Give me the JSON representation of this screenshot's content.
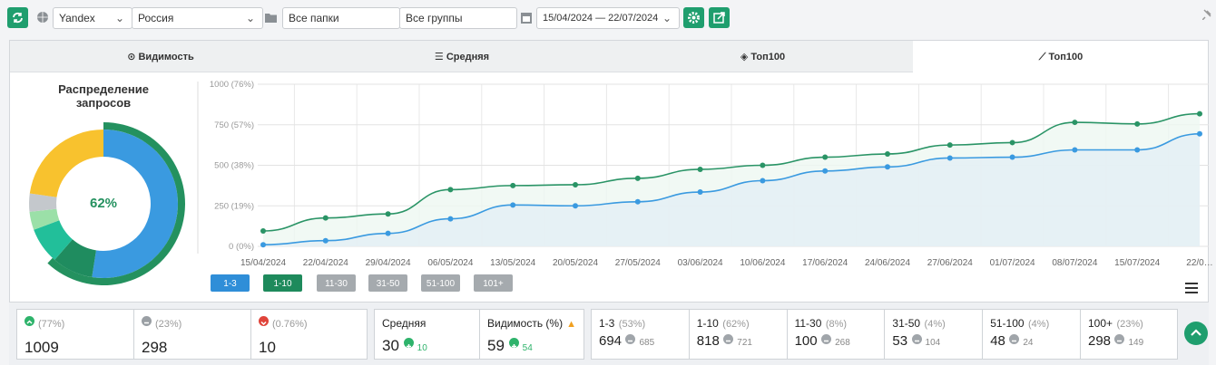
{
  "toolbar": {
    "engine": "Yandex",
    "region": "Россия",
    "folders": "Все папки",
    "groups": "Все группы",
    "date_range": "15/04/2024 — 22/07/2024"
  },
  "tabs": [
    "Видимость",
    "Средняя",
    "Топ100",
    "Топ100"
  ],
  "chart_data": [
    {
      "type": "pie",
      "title": "Распределение запросов",
      "values": [
        53,
        9,
        8,
        4,
        4,
        23
      ],
      "colors": [
        "#3a9ae0",
        "#1f8c5f",
        "#22bf9a",
        "#9be0a8",
        "#c4c8cc",
        "#f8c22e"
      ],
      "ring_value": 62,
      "ring_label": "62%",
      "ring_color": "#24915f"
    },
    {
      "type": "line",
      "categories": [
        "15/04/2024",
        "22/04/2024",
        "29/04/2024",
        "06/05/2024",
        "13/05/2024",
        "20/05/2024",
        "27/05/2024",
        "03/06/2024",
        "10/06/2024",
        "17/06/2024",
        "24/06/2024",
        "27/06/2024",
        "01/07/2024",
        "08/07/2024",
        "15/07/2024",
        "22/0…"
      ],
      "series": [
        {
          "name": "1-3",
          "color": "#3a9ae0",
          "values": [
            10,
            35,
            80,
            170,
            255,
            250,
            275,
            335,
            405,
            465,
            490,
            545,
            550,
            595,
            595,
            694
          ]
        },
        {
          "name": "1-10",
          "color": "#2a9466",
          "values": [
            95,
            175,
            200,
            350,
            375,
            380,
            420,
            475,
            500,
            550,
            570,
            625,
            640,
            765,
            755,
            818
          ]
        }
      ],
      "inactive_series": [
        "11-30",
        "31-50",
        "51-100",
        "101+"
      ],
      "ylim": [
        0,
        1000
      ],
      "yticks": [
        {
          "value": 0,
          "label": "0 (0%)"
        },
        {
          "value": 250,
          "label": "250 (19%)"
        },
        {
          "value": 500,
          "label": "500 (38%)"
        },
        {
          "value": 750,
          "label": "750 (57%)"
        },
        {
          "value": 1000,
          "label": "1000 (76%)"
        }
      ],
      "grid": true
    }
  ],
  "stats": {
    "positions": [
      {
        "share": "(77%)",
        "value": 1009
      },
      {
        "share": "(23%)",
        "value": 298
      },
      {
        "share": "(0.76%)",
        "value": 10
      }
    ],
    "summary": [
      {
        "label": "Средняя",
        "value": 30,
        "change": 10
      },
      {
        "label": "Видимость (%)",
        "value": 59,
        "change": 54
      }
    ],
    "groups": [
      {
        "label": "1-3",
        "share": "(53%)",
        "value": 694,
        "previous": 685
      },
      {
        "label": "1-10",
        "share": "(62%)",
        "value": 818,
        "previous": 721
      },
      {
        "label": "11-30",
        "share": "(8%)",
        "value": 100,
        "previous": 268
      },
      {
        "label": "31-50",
        "share": "(4%)",
        "value": 53,
        "previous": 104
      },
      {
        "label": "51-100",
        "share": "(4%)",
        "value": 48,
        "previous": 24
      },
      {
        "label": "100+",
        "share": "(23%)",
        "value": 298,
        "previous": 149
      }
    ]
  }
}
